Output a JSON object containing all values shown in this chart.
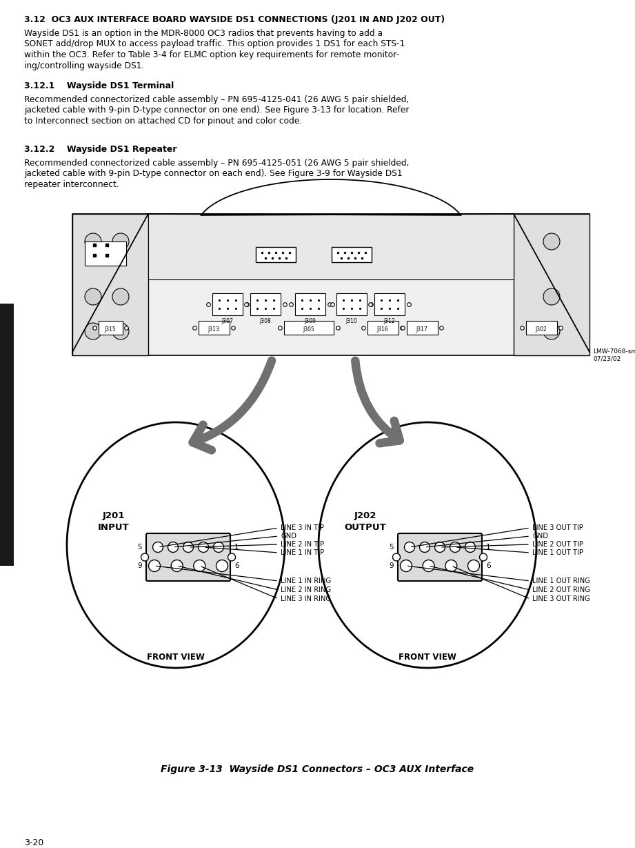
{
  "title_bold": "3.12  OC3 AUX INTERFACE BOARD WAYSIDE DS1 CONNECTIONS (J201 IN AND J202 OUT)",
  "body1_lines": [
    "Wayside DS1 is an option in the MDR-8000 OC3 radios that prevents having to add a",
    "SONET add/drop MUX to access payload traffic. This option provides 1 DS1 for each STS-1",
    "within the OC3. Refer to Table 3-4 for ELMC option key requirements for remote monitor-",
    "ing/controlling wayside DS1."
  ],
  "section1_title": "3.12.1    Wayside DS1 Terminal",
  "section1_lines": [
    "Recommended connectorized cable assembly – PN 695-4125-041 (26 AWG 5 pair shielded,",
    "jacketed cable with 9-pin D-type connector on one end). See Figure 3-13 for location. Refer",
    "to Interconnect section on attached CD for pinout and color code."
  ],
  "section2_title": "3.12.2    Wayside DS1 Repeater",
  "section2_lines": [
    "Recommended connectorized cable assembly – PN 695-4125-051 (26 AWG 5 pair shielded,",
    "jacketed cable with 9-pin D-type connector on each end). See Figure 3-9 for Wayside DS1",
    "repeater interconnect."
  ],
  "fig_caption": "Figure 3-13  Wayside DS1 Connectors – OC3 AUX Interface",
  "page_num": "3-20",
  "lmw_text": "LMW-7068-sm\n07/23/02",
  "j201_label1": "J201",
  "j201_label2": "INPUT",
  "j202_label1": "J202",
  "j202_label2": "OUTPUT",
  "front_view": "FRONT VIEW",
  "j201_top_pins": [
    "LINE 3 IN TIP",
    "GND",
    "LINE 2 IN TIP",
    "LINE 1 IN TIP"
  ],
  "j201_bot_pins": [
    "LINE 1 IN RING",
    "LINE 2 IN RING",
    "LINE 3 IN RING"
  ],
  "j202_top_pins": [
    "LINE 3 OUT TIP",
    "GND",
    "LINE 2 OUT TIP",
    "LINE 1 OUT TIP"
  ],
  "j202_bot_pins": [
    "LINE 1 OUT RING",
    "LINE 2 OUT RING",
    "LINE 3 OUT RING"
  ],
  "bg_color": "#ffffff",
  "text_color": "#000000",
  "sidebar_color": "#1a1a1a",
  "arrow_color": "#707070",
  "board_fill": "#f0f0f0",
  "board_panel_fill": "#e0e0e0"
}
